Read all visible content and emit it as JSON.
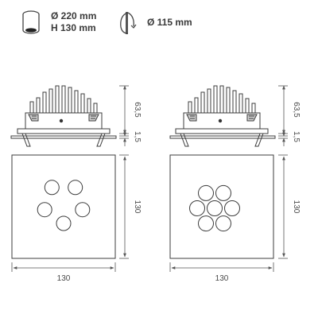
{
  "specs": {
    "housing_diameter": "Ø 220 mm",
    "housing_height": "H 130 mm",
    "cutout_diameter": "Ø 115 mm"
  },
  "icons": {
    "housing": "cylinder-housing-icon",
    "cutout": "ceiling-cutout-icon"
  },
  "dimensions": {
    "left_height_total": "63,5",
    "left_flange": "1,5",
    "left_side": "130",
    "left_width": "130",
    "right_height_total": "63,5",
    "right_flange": "1,5",
    "right_side": "130",
    "right_width": "130"
  },
  "variants": [
    {
      "name": "5-light",
      "lens_count": 5
    },
    {
      "name": "7-light",
      "lens_count": 7
    }
  ]
}
